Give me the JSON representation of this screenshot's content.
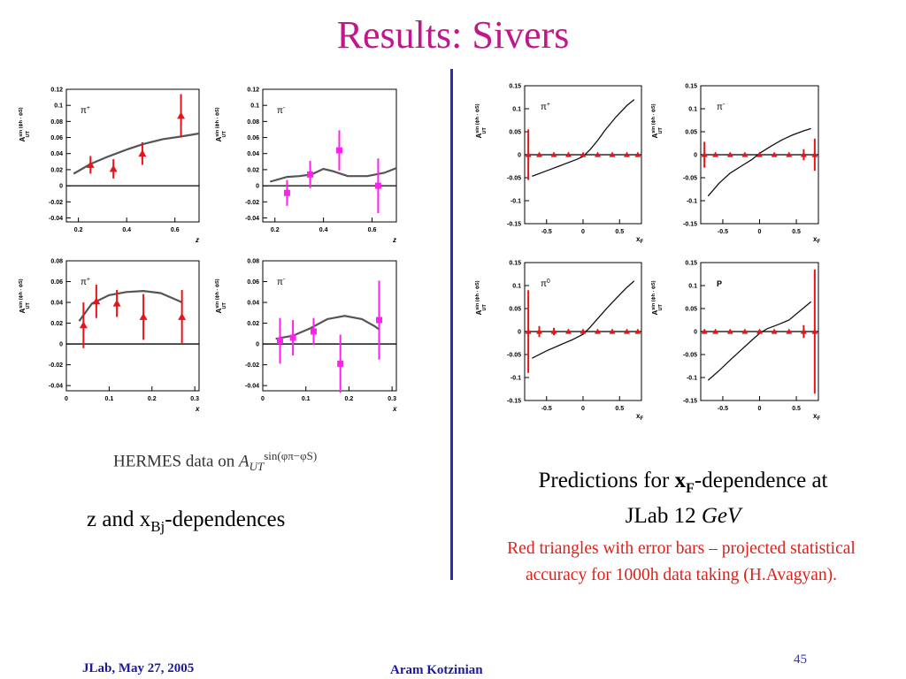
{
  "title": "Results: Sivers",
  "left_caption": {
    "prefix": "HERMES data on ",
    "base": "A",
    "sup": "sin(φπ−φS)",
    "sub": "UT"
  },
  "left_label": {
    "pre": "z and x",
    "sub": "Bj",
    "post": "-dependences"
  },
  "right_caption": {
    "l1_pre": "Predictions for ",
    "l1_bold": "x",
    "l1_bold_sub": "F",
    "l1_post": "-dependence at",
    "l2_pre": "JLab 12 ",
    "l2_it": "GeV"
  },
  "right_note": "Red triangles with error bars – projected statistical accuracy for 1000h data taking (H.Avagyan).",
  "footer": {
    "left": "JLab, May 27,  2005",
    "center": "Aram Kotzinian",
    "page": "45"
  },
  "colors": {
    "title": "#c0188a",
    "divider": "#2b2bb5",
    "red": "#e8141a",
    "magenta": "#ff22ee",
    "curve_hermes": "#555555",
    "curve_pred": "#111111"
  },
  "ylabel_text": {
    "base": "A",
    "sup": "sin (ϕh - ϕS)",
    "sub": "UT"
  },
  "chart_data": [
    {
      "type": "scatter",
      "panel": "hermes-z-pi-plus",
      "label": "π+",
      "xlabel": "z",
      "xlim": [
        0.15,
        0.7
      ],
      "ylim": [
        -0.045,
        0.12
      ],
      "xticks": [
        0.2,
        0.4,
        0.6
      ],
      "xtick_labels": [
        "0.2",
        "0.4",
        "0.6"
      ],
      "yticks": [
        -0.04,
        -0.02,
        0,
        0.02,
        0.04,
        0.06,
        0.08,
        0.1,
        0.12
      ],
      "ytick_labels": [
        "-0.04",
        "-0.02",
        "0",
        "0.02",
        "0.04",
        "0.06",
        "0.08",
        "0.1",
        "0.12"
      ],
      "marker": "triangle",
      "color": "#e8141a",
      "points": [
        {
          "x": 0.25,
          "y": 0.026,
          "err": 0.011
        },
        {
          "x": 0.345,
          "y": 0.021,
          "err": 0.012
        },
        {
          "x": 0.465,
          "y": 0.04,
          "err": 0.014
        },
        {
          "x": 0.625,
          "y": 0.087,
          "err": 0.027
        }
      ],
      "curve": [
        [
          0.18,
          0.015
        ],
        [
          0.25,
          0.027
        ],
        [
          0.32,
          0.036
        ],
        [
          0.4,
          0.045
        ],
        [
          0.47,
          0.052
        ],
        [
          0.55,
          0.058
        ],
        [
          0.62,
          0.061
        ],
        [
          0.7,
          0.065
        ]
      ]
    },
    {
      "type": "scatter",
      "panel": "hermes-z-pi-minus",
      "label": "π-",
      "xlabel": "z",
      "xlim": [
        0.15,
        0.7
      ],
      "ylim": [
        -0.045,
        0.12
      ],
      "xticks": [
        0.2,
        0.4,
        0.6
      ],
      "xtick_labels": [
        "0.2",
        "0.4",
        "0.6"
      ],
      "yticks": [
        -0.04,
        -0.02,
        0,
        0.02,
        0.04,
        0.06,
        0.08,
        0.1,
        0.12
      ],
      "ytick_labels": [
        "-0.04",
        "-0.02",
        "0",
        "0.02",
        "0.04",
        "0.06",
        "0.08",
        "0.1",
        "0.12"
      ],
      "marker": "square",
      "color": "#ff22ee",
      "points": [
        {
          "x": 0.25,
          "y": -0.009,
          "err": 0.016
        },
        {
          "x": 0.345,
          "y": 0.014,
          "err": 0.017
        },
        {
          "x": 0.465,
          "y": 0.044,
          "err": 0.025
        },
        {
          "x": 0.625,
          "y": 0.0,
          "err": 0.034
        }
      ],
      "curve": [
        [
          0.18,
          0.005
        ],
        [
          0.25,
          0.011
        ],
        [
          0.3,
          0.012
        ],
        [
          0.35,
          0.014
        ],
        [
          0.4,
          0.021
        ],
        [
          0.44,
          0.018
        ],
        [
          0.5,
          0.012
        ],
        [
          0.58,
          0.012
        ],
        [
          0.65,
          0.016
        ],
        [
          0.7,
          0.022
        ]
      ]
    },
    {
      "type": "scatter",
      "panel": "hermes-x-pi-plus",
      "label": "π+",
      "xlabel": "x",
      "xlim": [
        0,
        0.31
      ],
      "ylim": [
        -0.045,
        0.08
      ],
      "xticks": [
        0,
        0.1,
        0.2,
        0.3
      ],
      "xtick_labels": [
        "0",
        "0.1",
        "0.2",
        "0.3"
      ],
      "yticks": [
        -0.04,
        -0.02,
        0,
        0.02,
        0.04,
        0.06,
        0.08
      ],
      "ytick_labels": [
        "-0.04",
        "-0.02",
        "0",
        "0.02",
        "0.04",
        "0.06",
        "0.08"
      ],
      "marker": "triangle",
      "color": "#e8141a",
      "points": [
        {
          "x": 0.04,
          "y": 0.018,
          "err": 0.022
        },
        {
          "x": 0.07,
          "y": 0.041,
          "err": 0.016
        },
        {
          "x": 0.118,
          "y": 0.039,
          "err": 0.013
        },
        {
          "x": 0.18,
          "y": 0.026,
          "err": 0.022
        },
        {
          "x": 0.27,
          "y": 0.026,
          "err": 0.026
        }
      ],
      "curve": [
        [
          0.03,
          0.022
        ],
        [
          0.06,
          0.039
        ],
        [
          0.1,
          0.047
        ],
        [
          0.14,
          0.05
        ],
        [
          0.18,
          0.051
        ],
        [
          0.22,
          0.049
        ],
        [
          0.26,
          0.042
        ],
        [
          0.27,
          0.04
        ]
      ]
    },
    {
      "type": "scatter",
      "panel": "hermes-x-pi-minus",
      "label": "π-",
      "xlabel": "x",
      "xlim": [
        0,
        0.31
      ],
      "ylim": [
        -0.045,
        0.08
      ],
      "xticks": [
        0,
        0.1,
        0.2,
        0.3
      ],
      "xtick_labels": [
        "0",
        "0.1",
        "0.2",
        "0.3"
      ],
      "yticks": [
        -0.04,
        -0.02,
        0,
        0.02,
        0.04,
        0.06,
        0.08
      ],
      "ytick_labels": [
        "-0.04",
        "-0.02",
        "0",
        "0.02",
        "0.04",
        "0.06",
        "0.08"
      ],
      "marker": "square",
      "color": "#ff22ee",
      "points": [
        {
          "x": 0.04,
          "y": 0.003,
          "err": 0.022
        },
        {
          "x": 0.07,
          "y": 0.006,
          "err": 0.017
        },
        {
          "x": 0.118,
          "y": 0.012,
          "err": 0.013
        },
        {
          "x": 0.18,
          "y": -0.019,
          "err": 0.028
        },
        {
          "x": 0.27,
          "y": 0.023,
          "err": 0.038
        }
      ],
      "curve": [
        [
          0.03,
          0.005
        ],
        [
          0.07,
          0.008
        ],
        [
          0.11,
          0.015
        ],
        [
          0.15,
          0.024
        ],
        [
          0.19,
          0.027
        ],
        [
          0.23,
          0.024
        ],
        [
          0.26,
          0.017
        ],
        [
          0.27,
          0.014
        ]
      ]
    },
    {
      "type": "scatter",
      "panel": "pred-pi-plus",
      "label": "π+",
      "xlabel": "xF",
      "xlim": [
        -0.8,
        0.8
      ],
      "ylim": [
        -0.15,
        0.15
      ],
      "xticks": [
        -0.5,
        0,
        0.5
      ],
      "xtick_labels": [
        "-0.5",
        "0",
        "0.5"
      ],
      "yticks": [
        -0.15,
        -0.1,
        -0.05,
        0,
        0.05,
        0.1,
        0.15
      ],
      "ytick_labels": [
        "-0.15",
        "-0.1",
        "-0.05",
        "0",
        "0.05",
        "0.1",
        "0.15"
      ],
      "marker": "triangle",
      "color": "#e8141a",
      "points": [
        {
          "x": -0.75,
          "y": 0,
          "err": 0.055
        },
        {
          "x": -0.6,
          "y": 0,
          "err": 0.004
        },
        {
          "x": -0.4,
          "y": 0,
          "err": 0.003
        },
        {
          "x": -0.2,
          "y": 0,
          "err": 0.003
        },
        {
          "x": 0,
          "y": 0,
          "err": 0.003
        },
        {
          "x": 0.2,
          "y": 0,
          "err": 0.003
        },
        {
          "x": 0.4,
          "y": 0,
          "err": 0.003
        },
        {
          "x": 0.6,
          "y": 0,
          "err": 0.003
        },
        {
          "x": 0.75,
          "y": 0,
          "err": 0.003
        }
      ],
      "curve": [
        [
          -0.7,
          -0.047
        ],
        [
          -0.5,
          -0.035
        ],
        [
          -0.3,
          -0.023
        ],
        [
          -0.1,
          -0.011
        ],
        [
          0,
          -0.004
        ],
        [
          0.1,
          0.012
        ],
        [
          0.2,
          0.031
        ],
        [
          0.3,
          0.053
        ],
        [
          0.45,
          0.082
        ],
        [
          0.6,
          0.107
        ],
        [
          0.7,
          0.12
        ]
      ]
    },
    {
      "type": "scatter",
      "panel": "pred-pi-minus",
      "label": "π-",
      "xlabel": "xF",
      "xlim": [
        -0.8,
        0.8
      ],
      "ylim": [
        -0.15,
        0.15
      ],
      "xticks": [
        -0.5,
        0,
        0.5
      ],
      "xtick_labels": [
        "-0.5",
        "0",
        "0.5"
      ],
      "yticks": [
        -0.15,
        -0.1,
        -0.05,
        0,
        0.05,
        0.1,
        0.15
      ],
      "ytick_labels": [
        "-0.15",
        "-0.1",
        "-0.05",
        "0",
        "0.05",
        "0.1",
        "0.15"
      ],
      "marker": "triangle",
      "color": "#e8141a",
      "points": [
        {
          "x": -0.75,
          "y": 0,
          "err": 0.028
        },
        {
          "x": -0.6,
          "y": 0,
          "err": 0.004
        },
        {
          "x": -0.4,
          "y": 0,
          "err": 0.003
        },
        {
          "x": -0.2,
          "y": 0,
          "err": 0.003
        },
        {
          "x": 0,
          "y": 0,
          "err": 0.003
        },
        {
          "x": 0.2,
          "y": 0,
          "err": 0.003
        },
        {
          "x": 0.4,
          "y": 0,
          "err": 0.003
        },
        {
          "x": 0.6,
          "y": 0,
          "err": 0.012
        },
        {
          "x": 0.75,
          "y": 0,
          "err": 0.035
        }
      ],
      "curve": [
        [
          -0.7,
          -0.09
        ],
        [
          -0.55,
          -0.062
        ],
        [
          -0.4,
          -0.04
        ],
        [
          -0.25,
          -0.025
        ],
        [
          -0.1,
          -0.01
        ],
        [
          0,
          0.003
        ],
        [
          0.15,
          0.018
        ],
        [
          0.3,
          0.032
        ],
        [
          0.45,
          0.043
        ],
        [
          0.6,
          0.052
        ],
        [
          0.7,
          0.057
        ]
      ]
    },
    {
      "type": "scatter",
      "panel": "pred-pi-zero",
      "label": "π0",
      "xlabel": "xF",
      "xlim": [
        -0.8,
        0.8
      ],
      "ylim": [
        -0.15,
        0.15
      ],
      "xticks": [
        -0.5,
        0,
        0.5
      ],
      "xtick_labels": [
        "-0.5",
        "0",
        "0.5"
      ],
      "yticks": [
        -0.15,
        -0.1,
        -0.05,
        0,
        0.05,
        0.1,
        0.15
      ],
      "ytick_labels": [
        "-0.15",
        "-0.1",
        "-0.05",
        "0",
        "0.05",
        "0.1",
        "0.15"
      ],
      "marker": "triangle",
      "color": "#e8141a",
      "points": [
        {
          "x": -0.75,
          "y": 0,
          "err": 0.09
        },
        {
          "x": -0.6,
          "y": 0,
          "err": 0.012
        },
        {
          "x": -0.4,
          "y": 0,
          "err": 0.008
        },
        {
          "x": -0.2,
          "y": 0,
          "err": 0.004
        },
        {
          "x": 0,
          "y": 0,
          "err": 0.004
        },
        {
          "x": 0.2,
          "y": 0,
          "err": 0.004
        },
        {
          "x": 0.4,
          "y": 0,
          "err": 0.004
        },
        {
          "x": 0.6,
          "y": 0,
          "err": 0.004
        },
        {
          "x": 0.75,
          "y": 0,
          "err": 0.004
        }
      ],
      "curve": [
        [
          -0.7,
          -0.058
        ],
        [
          -0.5,
          -0.042
        ],
        [
          -0.3,
          -0.028
        ],
        [
          -0.15,
          -0.018
        ],
        [
          0,
          -0.006
        ],
        [
          0.1,
          0.01
        ],
        [
          0.2,
          0.028
        ],
        [
          0.35,
          0.055
        ],
        [
          0.5,
          0.08
        ],
        [
          0.6,
          0.096
        ],
        [
          0.7,
          0.11
        ]
      ]
    },
    {
      "type": "scatter",
      "panel": "pred-proton",
      "label": "P",
      "xlabel": "xF",
      "xlim": [
        -0.8,
        0.8
      ],
      "ylim": [
        -0.15,
        0.15
      ],
      "xticks": [
        -0.5,
        0,
        0.5
      ],
      "xtick_labels": [
        "-0.5",
        "0",
        "0.5"
      ],
      "yticks": [
        -0.15,
        -0.1,
        -0.05,
        0,
        0.05,
        0.1,
        0.15
      ],
      "ytick_labels": [
        "-0.15",
        "-0.1",
        "-0.05",
        "0",
        "0.05",
        "0.1",
        "0.15"
      ],
      "marker": "triangle",
      "color": "#e8141a",
      "points": [
        {
          "x": -0.75,
          "y": 0,
          "err": 0.004
        },
        {
          "x": -0.6,
          "y": 0,
          "err": 0.003
        },
        {
          "x": -0.4,
          "y": 0,
          "err": 0.003
        },
        {
          "x": -0.2,
          "y": 0,
          "err": 0.003
        },
        {
          "x": 0,
          "y": 0,
          "err": 0.003
        },
        {
          "x": 0.2,
          "y": 0,
          "err": 0.003
        },
        {
          "x": 0.4,
          "y": 0,
          "err": 0.003
        },
        {
          "x": 0.6,
          "y": 0,
          "err": 0.014
        },
        {
          "x": 0.75,
          "y": 0,
          "err": 0.135
        }
      ],
      "curve": [
        [
          -0.7,
          -0.106
        ],
        [
          -0.55,
          -0.085
        ],
        [
          -0.4,
          -0.062
        ],
        [
          -0.25,
          -0.04
        ],
        [
          -0.1,
          -0.018
        ],
        [
          0,
          -0.004
        ],
        [
          0.1,
          0.006
        ],
        [
          0.25,
          0.015
        ],
        [
          0.4,
          0.025
        ],
        [
          0.55,
          0.045
        ],
        [
          0.7,
          0.065
        ]
      ]
    }
  ]
}
